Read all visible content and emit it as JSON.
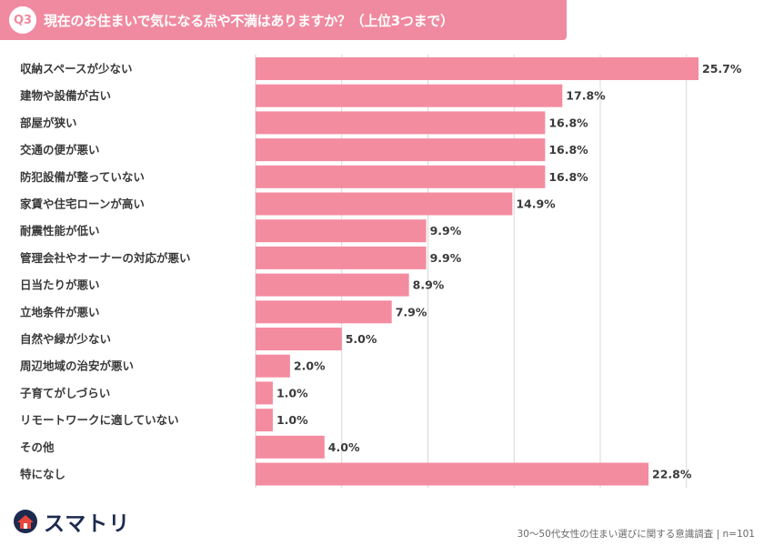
{
  "header": {
    "badge": "Q3",
    "title": "現在のお住まいで気になる点や不満はありますか？（上位3つまで）"
  },
  "chart_data": {
    "type": "bar",
    "orientation": "horizontal",
    "title": "現在のお住まいで気になる点や不満はありますか？（上位3つまで）",
    "categories": [
      "収納スペースが少ない",
      "建物や設備が古い",
      "部屋が狭い",
      "交通の便が悪い",
      "防犯設備が整っていない",
      "家賃や住宅ローンが高い",
      "耐震性能が低い",
      "管理会社やオーナーの対応が悪い",
      "日当たりが悪い",
      "立地条件が悪い",
      "自然や緑が少ない",
      "周辺地域の治安が悪い",
      "子育てがしづらい",
      "リモートワークに適していない",
      "その他",
      "特になし"
    ],
    "values": [
      25.7,
      17.8,
      16.8,
      16.8,
      16.8,
      14.9,
      9.9,
      9.9,
      8.9,
      7.9,
      5.0,
      2.0,
      1.0,
      1.0,
      4.0,
      22.8
    ],
    "value_labels": [
      "25.7%",
      "17.8%",
      "16.8%",
      "16.8%",
      "16.8%",
      "14.9%",
      "9.9%",
      "9.9%",
      "8.9%",
      "7.9%",
      "5.0%",
      "2.0%",
      "1.0%",
      "1.0%",
      "4.0%",
      "22.8%"
    ],
    "xlim": [
      0,
      25.7
    ],
    "grid": true,
    "bar_color": "#f48ca0"
  },
  "footer": {
    "logo_text": "スマトリ",
    "note": "30～50代女性の住まい選びに関する意識調査 | n=101"
  },
  "colors": {
    "header_bg": "#f08aa0",
    "bar": "#f48ca0",
    "logo_red": "#e8463c",
    "logo_navy": "#1d2a4f"
  }
}
